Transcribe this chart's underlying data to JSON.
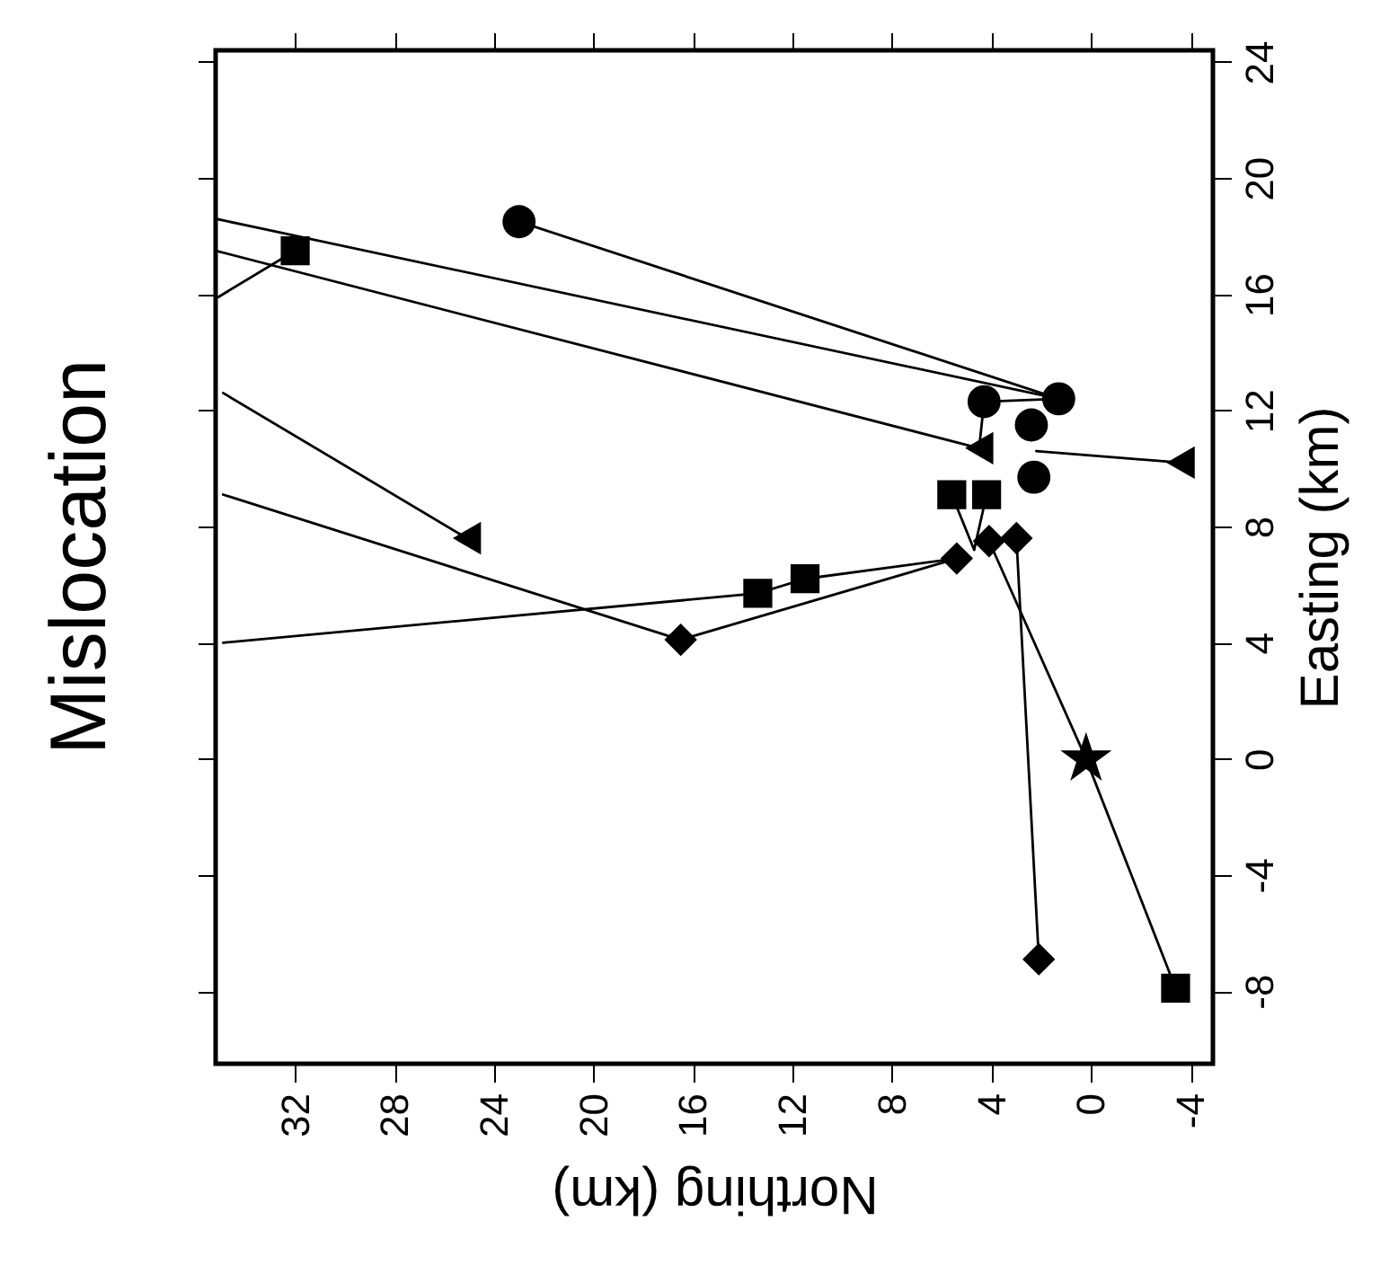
{
  "chart_data": {
    "type": "line",
    "title": "Mislocation",
    "xlabel": "Northing (km)",
    "ylabel": "Easting (km)",
    "xlim": [
      35.2,
      -4.9
    ],
    "xticks": [
      32,
      28,
      24,
      20,
      16,
      12,
      8,
      4,
      0,
      -4
    ],
    "ylim": [
      -10.5,
      24.4
    ],
    "yticks": [
      -8,
      -4,
      0,
      4,
      8,
      12,
      16,
      20,
      24
    ],
    "grid": false,
    "line_style": "solid",
    "series": [
      {
        "type": "line",
        "color": "#000000",
        "x": [
          23.0,
          1.3
        ],
        "values": [
          18.5,
          12.4
        ]
      },
      {
        "type": "line",
        "color": "#000000",
        "x": [
          35.2,
          1.3
        ],
        "values": [
          18.6,
          12.4
        ]
      },
      {
        "type": "line",
        "color": "#000000",
        "x": [
          35.2,
          4.5
        ],
        "values": [
          17.5,
          10.7
        ]
      },
      {
        "type": "line",
        "color": "#000000",
        "x": [
          32.0,
          35.1
        ],
        "values": [
          17.5,
          15.9
        ]
      },
      {
        "type": "line",
        "color": "#000000",
        "x": [
          25.1,
          34.9
        ],
        "values": [
          7.6,
          12.6
        ]
      },
      {
        "type": "line",
        "color": "#000000",
        "x": [
          34.9,
          16.5,
          5.4
        ],
        "values": [
          9.1,
          4.1,
          6.9
        ]
      },
      {
        "type": "line",
        "color": "#000000",
        "x": [
          34.9,
          13.4,
          11.5,
          5.4
        ],
        "values": [
          4.0,
          5.7,
          6.2,
          6.9
        ]
      },
      {
        "type": "line",
        "color": "#000000",
        "x": [
          5.6,
          4.7
        ],
        "values": [
          9.1,
          7.2
        ]
      },
      {
        "type": "line",
        "color": "#000000",
        "x": [
          4.2,
          4.7
        ],
        "values": [
          9.1,
          7.2
        ]
      },
      {
        "type": "line",
        "color": "#000000",
        "x": [
          -3.6,
          2.2
        ],
        "values": [
          10.2,
          10.6
        ]
      },
      {
        "type": "line",
        "color": "#000000",
        "x": [
          4.3,
          4.5
        ],
        "values": [
          12.3,
          10.7
        ]
      },
      {
        "type": "line",
        "color": "#000000",
        "x": [
          4.3,
          1.3
        ],
        "values": [
          12.3,
          12.4
        ]
      },
      {
        "type": "line",
        "color": "#000000",
        "x": [
          3.0,
          2.1
        ],
        "values": [
          7.6,
          -6.9
        ]
      },
      {
        "type": "line",
        "color": "#000000",
        "x": [
          4.1,
          0.2,
          -3.4
        ],
        "values": [
          7.5,
          0.0,
          -7.9
        ]
      },
      {
        "type": "scatter",
        "marker": "circle",
        "color": "#000000",
        "x": [
          23.0,
          4.3,
          1.3,
          2.4,
          2.3
        ],
        "values": [
          18.5,
          12.3,
          12.4,
          11.5,
          9.7
        ]
      },
      {
        "type": "scatter",
        "marker": "triangle",
        "color": "#000000",
        "x": [
          25.1,
          -3.6,
          4.5
        ],
        "values": [
          7.6,
          10.2,
          10.7
        ]
      },
      {
        "type": "scatter",
        "marker": "square",
        "color": "#000000",
        "x": [
          32.0,
          5.6,
          4.2,
          13.4,
          11.5,
          -3.4
        ],
        "values": [
          17.5,
          9.1,
          9.1,
          5.7,
          6.2,
          -7.9
        ]
      },
      {
        "type": "scatter",
        "marker": "diamond",
        "color": "#000000",
        "x": [
          16.5,
          5.4,
          4.1,
          3.0,
          2.1
        ],
        "values": [
          4.1,
          6.9,
          7.5,
          7.6,
          -6.9
        ]
      },
      {
        "type": "scatter",
        "marker": "star",
        "color": "#000000",
        "x": [
          0.2
        ],
        "values": [
          0.0
        ]
      }
    ]
  }
}
